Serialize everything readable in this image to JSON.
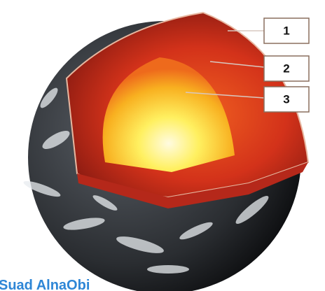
{
  "labels": [
    "1",
    "2",
    "3"
  ],
  "watermark": "Suad AlnaObi"
}
